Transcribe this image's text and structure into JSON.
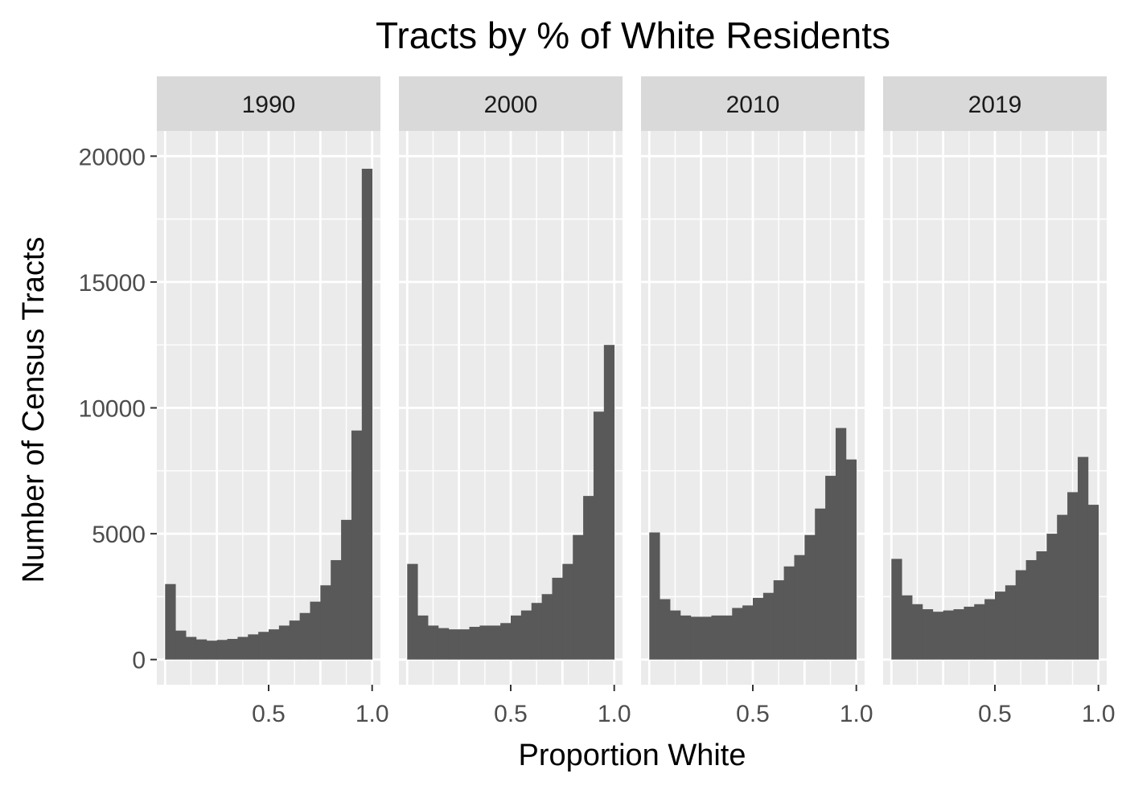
{
  "chart_data": {
    "type": "bar",
    "title": "Tracts by % of White Residents",
    "xlabel": "Proportion White",
    "ylabel": "Number of Census Tracts",
    "ylim": [
      -1000,
      21000
    ],
    "xlim": [
      -0.04,
      1.04
    ],
    "yticks": [
      0,
      5000,
      10000,
      15000,
      20000
    ],
    "ytick_labels": [
      "0",
      "5000",
      "10000",
      "15000",
      "20000"
    ],
    "xticks": [
      0.5,
      1.0
    ],
    "xtick_labels": [
      "0.5",
      "1.0"
    ],
    "bin_start": 0.0,
    "bin_width": 0.05,
    "bar_color": "#595959",
    "panel_background": "#ebebeb",
    "strip_background": "#d9d9d9",
    "grid": true,
    "legend": "none",
    "panels": [
      {
        "label": "1990",
        "values": [
          3000,
          1150,
          900,
          800,
          750,
          780,
          820,
          900,
          1000,
          1100,
          1200,
          1350,
          1550,
          1850,
          2300,
          2950,
          3950,
          5550,
          9100,
          19500
        ]
      },
      {
        "label": "2000",
        "values": [
          3800,
          1750,
          1350,
          1250,
          1200,
          1200,
          1300,
          1350,
          1350,
          1450,
          1750,
          1950,
          2250,
          2600,
          3250,
          3800,
          4950,
          6500,
          9850,
          12500
        ]
      },
      {
        "label": "2010",
        "values": [
          5050,
          2400,
          1950,
          1750,
          1700,
          1700,
          1750,
          1750,
          2050,
          2150,
          2450,
          2650,
          3150,
          3700,
          4150,
          4950,
          6000,
          7300,
          9200,
          7950
        ]
      },
      {
        "label": "2019",
        "values": [
          4000,
          2550,
          2200,
          2000,
          1900,
          1950,
          2000,
          2100,
          2200,
          2400,
          2700,
          2950,
          3550,
          3950,
          4300,
          5000,
          5750,
          6650,
          8050,
          6150
        ]
      }
    ]
  }
}
